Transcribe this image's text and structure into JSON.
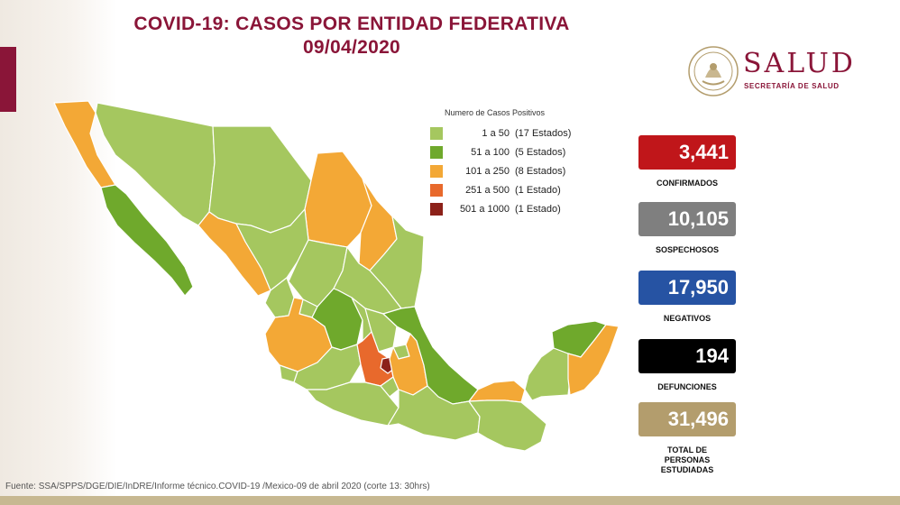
{
  "header": {
    "title_line1": "COVID-19: CASOS POR ENTIDAD FEDERATIVA",
    "title_line2": "09/04/2020"
  },
  "logo": {
    "name": "SALUD",
    "subtitle": "SECRETARÍA DE SALUD",
    "icon": "mexican-coat-of-arms-seal"
  },
  "legend": {
    "title": "Numero de Casos Positivos",
    "items": [
      {
        "range": "1 a   50",
        "count": "(17 Estados)",
        "color": "#a5c75f"
      },
      {
        "range": "51 a  100",
        "count": "(5 Estados)",
        "color": "#6fa92c"
      },
      {
        "range": "101 a  250",
        "count": "(8 Estados)",
        "color": "#f3a836"
      },
      {
        "range": "251 a  500",
        "count": "(1 Estado)",
        "color": "#e8692c"
      },
      {
        "range": "501 a 1000",
        "count": "(1 Estado)",
        "color": "#8c2119"
      }
    ]
  },
  "stats": [
    {
      "value": "3,441",
      "label": "CONFIRMADOS",
      "color": "#c0161a"
    },
    {
      "value": "10,105",
      "label": "SOSPECHOSOS",
      "color": "#7f7f7f"
    },
    {
      "value": "17,950",
      "label": "NEGATIVOS",
      "color": "#2653a3"
    },
    {
      "value": "194",
      "label": "DEFUNCIONES",
      "color": "#000000"
    },
    {
      "value": "31,496",
      "label_lines": [
        "TOTAL DE",
        "PERSONAS",
        "ESTUDIADAS"
      ],
      "color": "#b39d6d"
    }
  ],
  "footer": {
    "source": "Fuente: SSA/SPPS/DGE/DIE/InDRE/Informe técnico.COVID-19 /Mexico-09 de abril 2020 (corte 13: 30hrs)"
  },
  "map_colors": {
    "light_green": "#a5c75f",
    "green": "#6fa92c",
    "orange": "#f3a836",
    "dark_orange": "#e8692c",
    "dark_red": "#8c2119",
    "border": "#ffffff"
  }
}
